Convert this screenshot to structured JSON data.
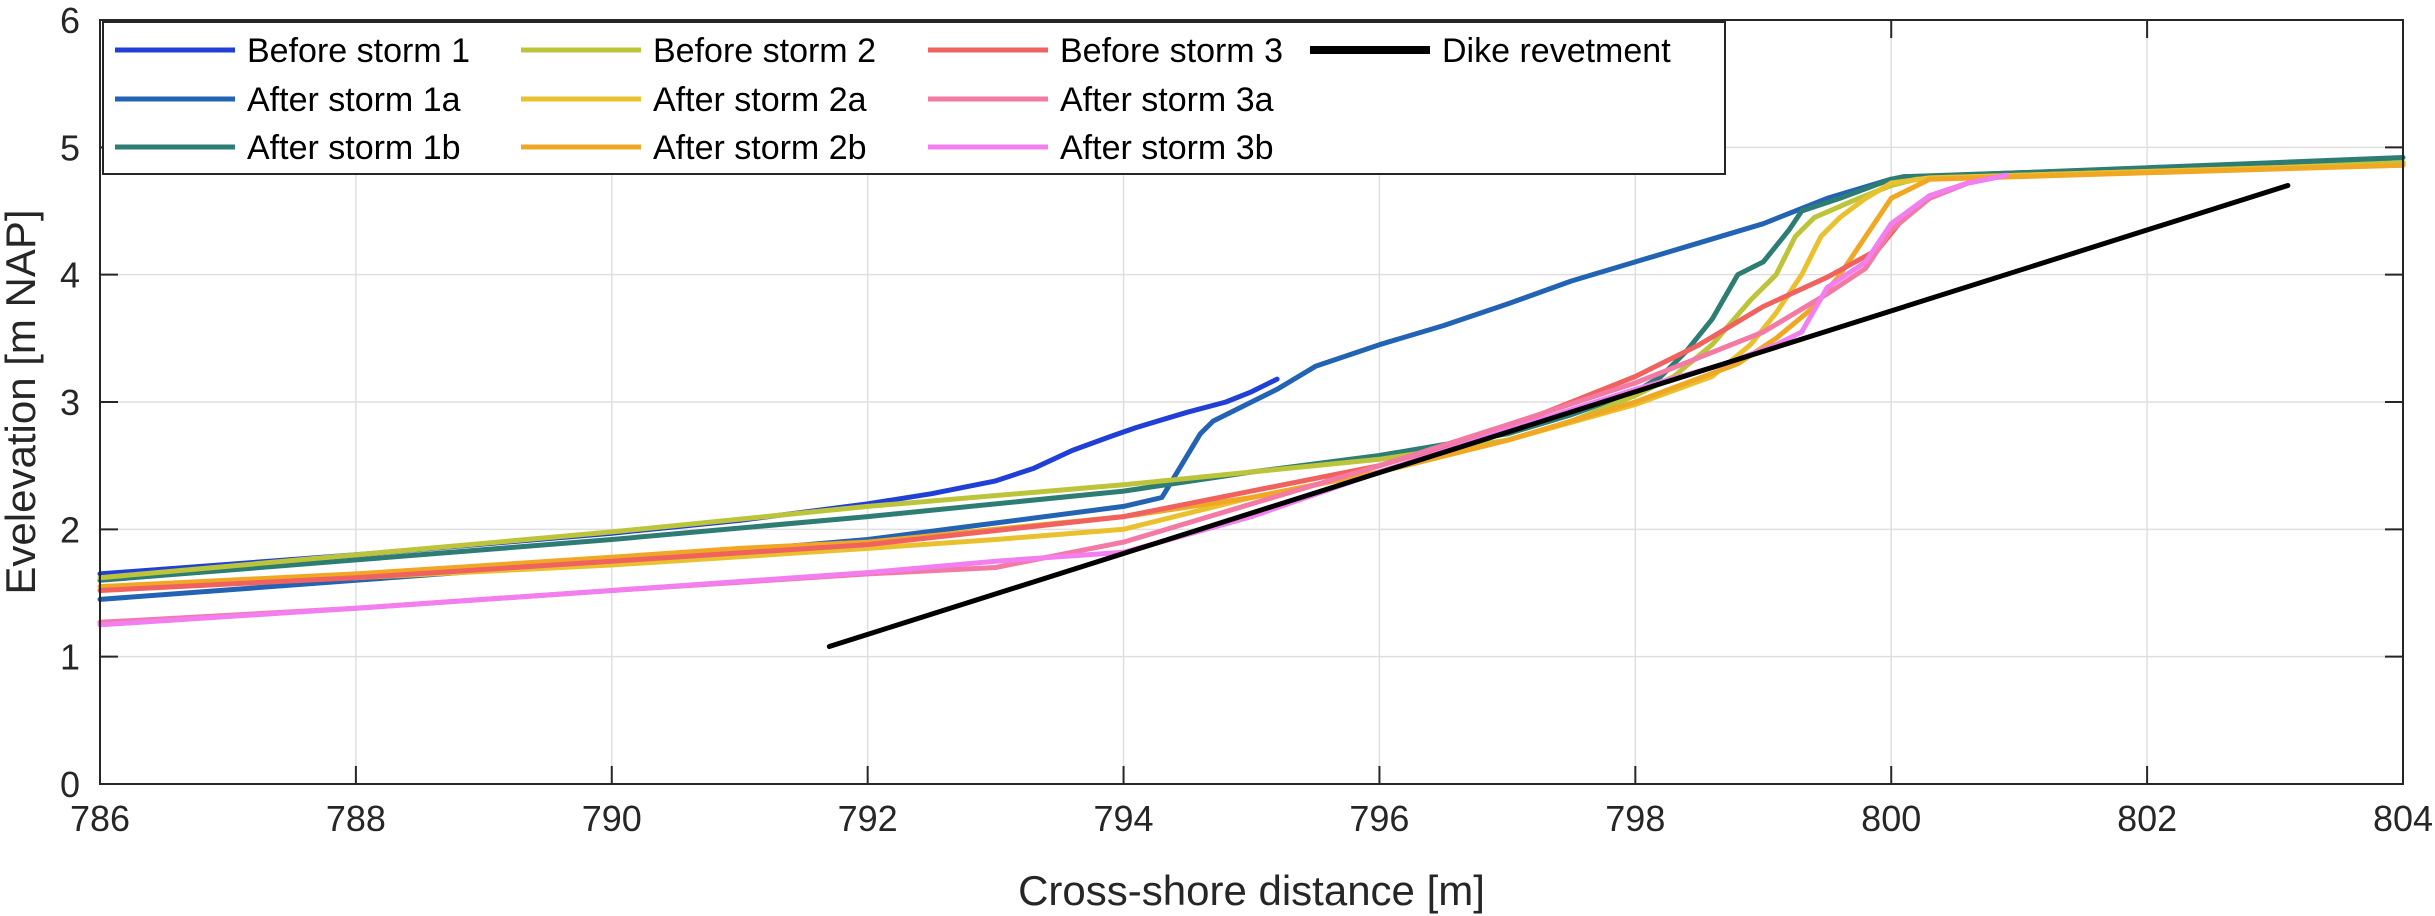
{
  "chart_data": {
    "type": "line",
    "title": "",
    "xlabel": "Cross-shore distance [m]",
    "ylabel": "Evelevation [m NAP]",
    "xlim": [
      786,
      804
    ],
    "ylim": [
      0,
      6
    ],
    "xticks": [
      786,
      788,
      790,
      792,
      794,
      796,
      798,
      800,
      802,
      804
    ],
    "yticks": [
      0,
      1,
      2,
      3,
      4,
      5,
      6
    ],
    "grid": true,
    "legend_placement": "top-left",
    "legend_columns": 4,
    "series": [
      {
        "name": "Before storm 1",
        "color": "#1f3fd6",
        "x": [
          786,
          788,
          790,
          791,
          792,
          792.5,
          793,
          793.3,
          793.6,
          793.9,
          794.1,
          794.3,
          794.5,
          794.8,
          795.0,
          795.2
        ],
        "y": [
          1.65,
          1.8,
          1.97,
          2.07,
          2.2,
          2.28,
          2.38,
          2.48,
          2.62,
          2.73,
          2.8,
          2.86,
          2.92,
          3.0,
          3.08,
          3.18
        ]
      },
      {
        "name": "After storm 1a",
        "color": "#2263b3",
        "x": [
          786,
          788,
          790,
          792,
          793,
          794,
          794.3,
          794.45,
          794.6,
          794.7,
          794.9,
          795.2,
          795.5,
          796,
          796.5,
          797,
          797.5,
          798,
          798.5,
          799,
          799.5,
          800,
          800.5,
          801,
          802,
          803,
          804
        ],
        "y": [
          1.45,
          1.6,
          1.75,
          1.92,
          2.05,
          2.18,
          2.25,
          2.5,
          2.75,
          2.85,
          2.95,
          3.1,
          3.28,
          3.45,
          3.6,
          3.77,
          3.95,
          4.1,
          4.25,
          4.4,
          4.6,
          4.75,
          4.78,
          4.8,
          4.83,
          4.86,
          4.88
        ]
      },
      {
        "name": "After storm 1b",
        "color": "#2e7d75",
        "x": [
          786,
          788,
          790,
          792,
          794,
          795,
          796,
          797,
          797.5,
          798,
          798.2,
          798.4,
          798.6,
          798.8,
          799.0,
          799.2,
          799.3,
          799.6,
          800,
          800.1,
          801,
          802,
          803,
          804
        ],
        "y": [
          1.6,
          1.76,
          1.92,
          2.1,
          2.3,
          2.45,
          2.58,
          2.75,
          2.9,
          3.08,
          3.2,
          3.4,
          3.65,
          4.0,
          4.1,
          4.35,
          4.5,
          4.6,
          4.75,
          4.77,
          4.8,
          4.84,
          4.88,
          4.92
        ]
      },
      {
        "name": "Before storm 2",
        "color": "#bcc43a",
        "x": [
          786,
          788,
          790,
          792,
          794,
          795,
          796,
          797,
          797.5,
          798,
          798.3,
          798.6,
          798.9,
          799.1,
          799.25,
          799.4,
          799.7,
          800,
          800.2,
          801,
          802,
          803,
          804
        ],
        "y": [
          1.62,
          1.8,
          1.98,
          2.18,
          2.35,
          2.45,
          2.55,
          2.7,
          2.85,
          3.05,
          3.2,
          3.45,
          3.8,
          4.0,
          4.3,
          4.45,
          4.58,
          4.7,
          4.75,
          4.78,
          4.81,
          4.84,
          4.88
        ]
      },
      {
        "name": "After storm 2a",
        "color": "#e9c12e",
        "x": [
          786,
          788,
          790,
          792,
          793,
          794,
          795,
          796,
          797,
          798,
          798.6,
          798.9,
          799.1,
          799.3,
          799.45,
          799.6,
          799.8,
          800,
          800.3,
          801,
          802,
          803,
          804
        ],
        "y": [
          1.55,
          1.62,
          1.72,
          1.85,
          1.92,
          2.0,
          2.25,
          2.45,
          2.7,
          2.98,
          3.2,
          3.45,
          3.7,
          4.0,
          4.3,
          4.45,
          4.6,
          4.72,
          4.76,
          4.78,
          4.81,
          4.84,
          4.86
        ]
      },
      {
        "name": "After storm 2b",
        "color": "#f0a824",
        "x": [
          786,
          788,
          790,
          791,
          792,
          793,
          794,
          795,
          796,
          797,
          798,
          798.8,
          799.1,
          799.4,
          799.6,
          799.8,
          800,
          800.3,
          801,
          802,
          803,
          804
        ],
        "y": [
          1.55,
          1.65,
          1.78,
          1.85,
          1.9,
          2.0,
          2.1,
          2.25,
          2.45,
          2.7,
          3.0,
          3.3,
          3.5,
          3.75,
          4.0,
          4.3,
          4.6,
          4.75,
          4.77,
          4.8,
          4.83,
          4.86
        ]
      },
      {
        "name": "Before storm 3",
        "color": "#f0625f",
        "x": [
          786,
          788,
          790,
          792,
          794,
          795,
          796,
          797,
          798,
          798.5,
          799,
          799.5,
          799.9,
          800.1,
          800.3,
          800.6,
          800.9
        ],
        "y": [
          1.52,
          1.62,
          1.75,
          1.88,
          2.1,
          2.3,
          2.5,
          2.8,
          3.2,
          3.45,
          3.75,
          3.98,
          4.2,
          4.45,
          4.62,
          4.72,
          4.78
        ]
      },
      {
        "name": "After storm 3a",
        "color": "#f27aa4",
        "x": [
          786,
          788,
          790,
          792,
          793,
          794,
          795,
          796,
          797,
          798,
          798.5,
          799,
          799.5,
          799.8,
          800,
          800.3,
          800.6,
          800.9
        ],
        "y": [
          1.27,
          1.38,
          1.52,
          1.65,
          1.7,
          1.9,
          2.2,
          2.5,
          2.82,
          3.15,
          3.35,
          3.55,
          3.85,
          4.05,
          4.35,
          4.6,
          4.72,
          4.78
        ]
      },
      {
        "name": "After storm 3b",
        "color": "#f27ef0",
        "x": [
          786,
          788,
          790,
          792,
          793,
          794,
          795,
          796,
          797,
          798,
          798.7,
          799.1,
          799.3,
          799.5,
          799.8,
          800,
          800.3,
          800.6,
          800.9
        ],
        "y": [
          1.25,
          1.38,
          1.52,
          1.66,
          1.75,
          1.82,
          2.1,
          2.45,
          2.78,
          3.1,
          3.3,
          3.45,
          3.55,
          3.9,
          4.1,
          4.4,
          4.62,
          4.72,
          4.78
        ]
      },
      {
        "name": "Dike revetment",
        "color": "#000000",
        "x": [
          791.7,
          803.1
        ],
        "y": [
          1.08,
          4.7
        ]
      }
    ]
  }
}
